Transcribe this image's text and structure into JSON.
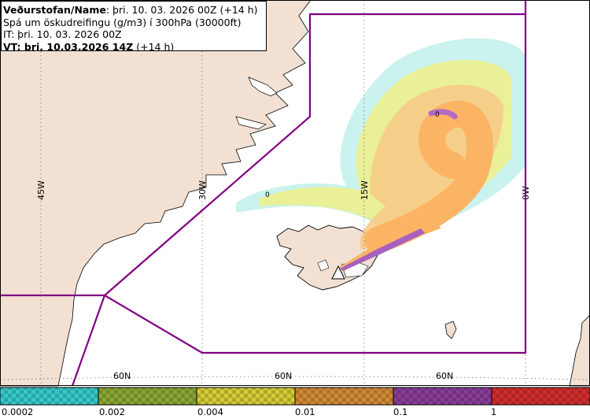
{
  "header": {
    "line1_bold": "Veðurstofan/Name",
    "line1_rest": ": þri. 10. 03. 2026 00Z (+14 h)",
    "line2": "Spá um öskudreifingu (g/m3) í 300hPa (30000ft)",
    "line3": "IT: þri. 10. 03. 2026 00Z",
    "line4_bold": "VT: þri. 10.03.2026 14Z",
    "line4_rest": " (+14 h)"
  },
  "map": {
    "longitude_labels": [
      "45W",
      "30W",
      "15W",
      "0W"
    ],
    "latitude_labels": [
      "60N",
      "60N",
      "60N"
    ],
    "contour_labels": [
      "0",
      "0"
    ],
    "colors": {
      "land": "#f2e0d3",
      "sea": "#ffffff",
      "boundary": "#800080",
      "grid": "#777777"
    }
  },
  "legend": {
    "tick_labels": [
      "0.0002",
      "0.002",
      "0.004",
      "0.01",
      "0.1",
      "1"
    ],
    "colors": [
      "#36c9c9",
      "#8aa633",
      "#d4cc33",
      "#d18a33",
      "#8a3d99",
      "#d12e2e"
    ]
  }
}
